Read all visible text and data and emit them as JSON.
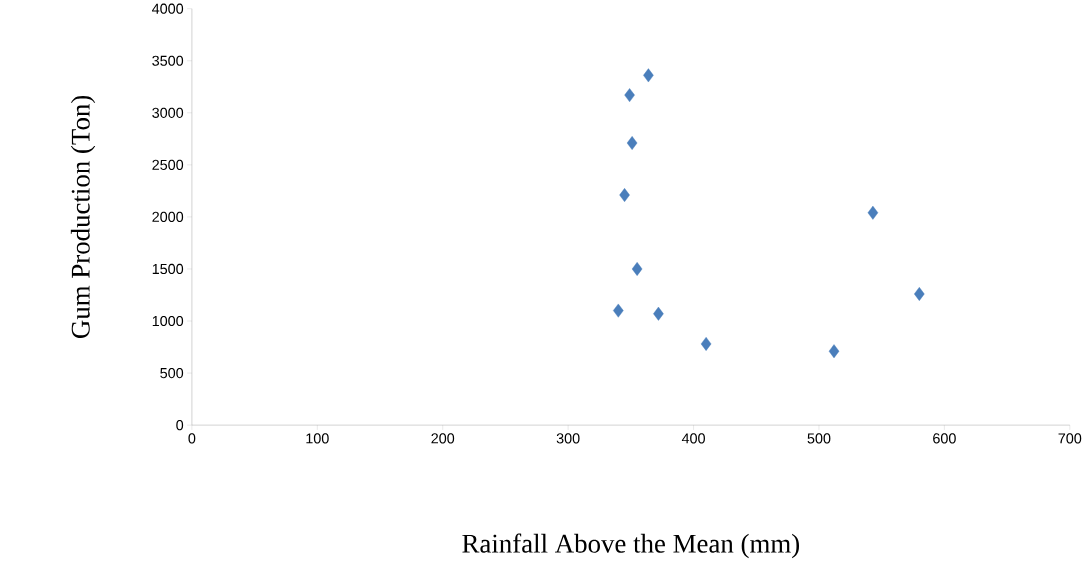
{
  "chart_data": {
    "type": "scatter",
    "xlabel": "Rainfall Above the Mean (mm)",
    "ylabel": "Gum Production (Ton)",
    "x": [
      364,
      349,
      351,
      345,
      543,
      355,
      580,
      340,
      372,
      410,
      512
    ],
    "values": [
      3360,
      3170,
      2710,
      2210,
      2040,
      1500,
      1260,
      1100,
      1070,
      780,
      710
    ],
    "color": "#4a7ebb",
    "marker": "diamond",
    "grid": false,
    "xlim": [
      0,
      700
    ],
    "ylim": [
      0,
      4000
    ],
    "xticks": [
      0,
      100,
      200,
      300,
      400,
      500,
      600,
      700
    ],
    "yticks": [
      0,
      500,
      1000,
      1500,
      2000,
      2500,
      3000,
      3500,
      4000
    ]
  }
}
